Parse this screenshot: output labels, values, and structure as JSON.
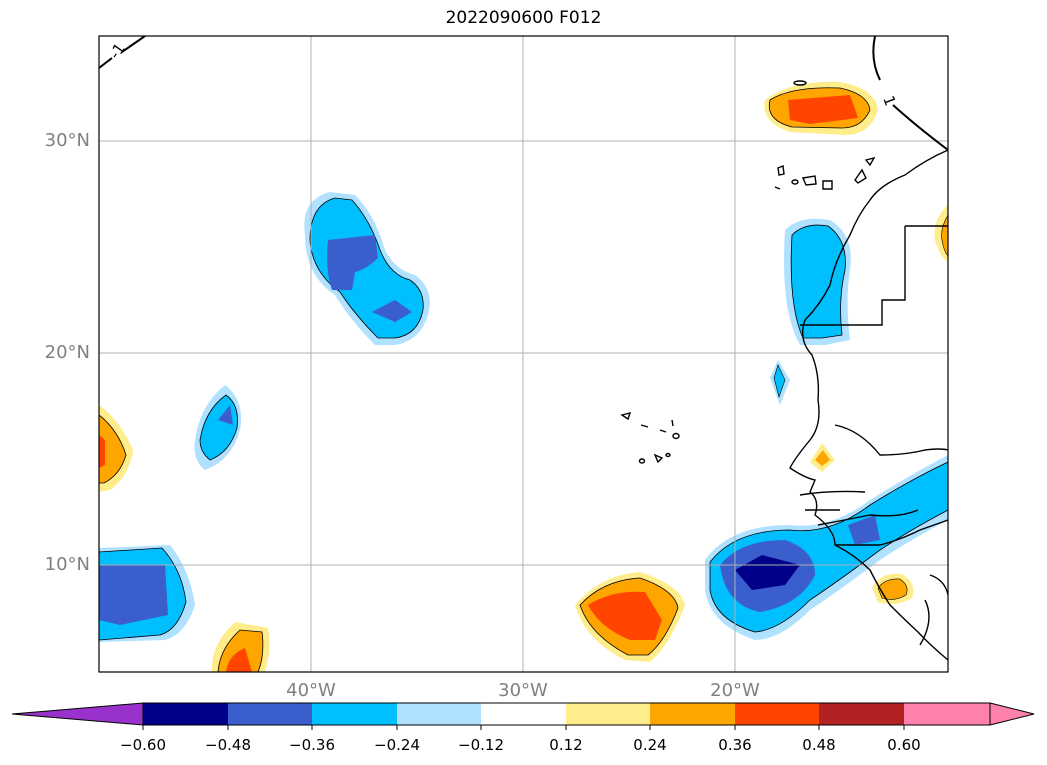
{
  "title": "2022090600 F012",
  "map": {
    "lat_labels": [
      "30°N",
      "20°N",
      "10°N"
    ],
    "lon_labels": [
      "40°W",
      "30°W",
      "20°W"
    ],
    "contour_labels": [
      "-1",
      "1"
    ],
    "grid": true
  },
  "colorbar": {
    "ticks": [
      "−0.60",
      "−0.48",
      "−0.36",
      "−0.24",
      "−0.12",
      "0.12",
      "0.24",
      "0.36",
      "0.48",
      "0.60"
    ],
    "colors": [
      "#9932cc",
      "#00008b",
      "#3a5fcd",
      "#00bfff",
      "#b0e2ff",
      "#ffffff",
      "#ffec8b",
      "#ffa500",
      "#ff4500",
      "#b22222",
      "#ff82ab"
    ],
    "extend": "both"
  }
}
